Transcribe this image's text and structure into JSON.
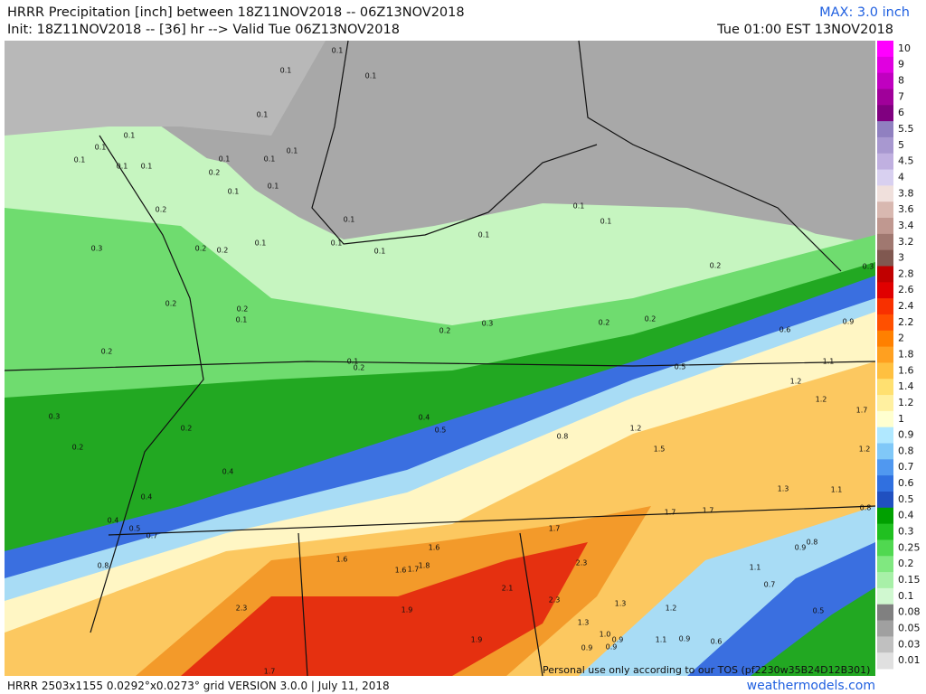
{
  "header": {
    "title": "HRRR Precipitation [inch] between 18Z11NOV2018 -- 06Z13NOV2018",
    "init": "Init: 18Z11NOV2018 -- [36] hr --> Valid Tue 06Z13NOV2018",
    "max": "MAX: 3.0 inch",
    "valid": "Tue 01:00 EST 13NOV2018"
  },
  "colorbar": {
    "labels": [
      10,
      9,
      8,
      7,
      6,
      5.5,
      5,
      4.5,
      4,
      3.8,
      3.6,
      3.4,
      3.2,
      3,
      2.8,
      2.6,
      2.4,
      2.2,
      2,
      1.8,
      1.6,
      1.4,
      1.2,
      1,
      0.9,
      0.8,
      0.7,
      0.6,
      0.5,
      0.4,
      0.3,
      0.25,
      0.2,
      0.15,
      0.1,
      0.08,
      0.05,
      0.03,
      0.01
    ],
    "colors": [
      "#ff00ff",
      "#e000e0",
      "#c000c0",
      "#a0009a",
      "#800080",
      "#9080c0",
      "#a898d0",
      "#c0b0e0",
      "#d8d0f0",
      "#f0e0dc",
      "#d8b8b0",
      "#c09890",
      "#a07870",
      "#805850",
      "#c00000",
      "#e00000",
      "#f83000",
      "#ff5000",
      "#ff8000",
      "#ffa020",
      "#ffc040",
      "#ffe070",
      "#fff0a0",
      "#ffffd0",
      "#b0e8ff",
      "#80c8f8",
      "#5098f0",
      "#3070e0",
      "#2050c0",
      "#00a000",
      "#20c020",
      "#50d850",
      "#80e880",
      "#a8f0a8",
      "#d0f8d0",
      "#808080",
      "#a0a0a0",
      "#c0c0c0",
      "#e0e0e0"
    ]
  },
  "map": {
    "labels": [
      "0.1",
      "0.1",
      "0.1",
      "0.1",
      "0.1",
      "0.1",
      "0.1",
      "0.1",
      "0.1",
      "0.2",
      "0.1",
      "0.1",
      "0.1",
      "0.1",
      "0.1",
      "0.2",
      "0.3",
      "0.2",
      "0.2",
      "0.1",
      "0.1",
      "0.1",
      "0.1",
      "0.1",
      "0.1",
      "0.1",
      "0.2",
      "0.3",
      "0.2",
      "0.2",
      "0.1",
      "0.2",
      "0.1",
      "0.2",
      "0.2",
      "0.3",
      "0.2",
      "0.2",
      "0.6",
      "0.9",
      "1.1",
      "0.5",
      "1.2",
      "0.3",
      "0.2",
      "0.4",
      "0.5",
      "0.8",
      "1.2",
      "1.5",
      "1.2",
      "1.7",
      "1.2",
      "0.2",
      "0.4",
      "0.4",
      "1.3",
      "1.1",
      "0.8",
      "1.7",
      "1.7",
      "0.4",
      "0.5",
      "0.7",
      "1.7",
      "0.8",
      "1.6",
      "1.6",
      "1.6",
      "1.7",
      "1.8",
      "2.3",
      "0.9",
      "0.8",
      "1.1",
      "0.7",
      "2.1",
      "2.3",
      "1.3",
      "1.2",
      "2.3",
      "1.9",
      "0.5",
      "1.3",
      "1.9",
      "1.0",
      "0.9",
      "1.1",
      "0.9",
      "0.6",
      "0.9",
      "0.9",
      "1.7"
    ]
  },
  "footer": {
    "info": "HRRR 2503x1155 0.0292°x0.0273° grid VERSION 3.0.0 | July 11, 2018",
    "site": "weathermodels.com",
    "notice": "Personal use only according to our TOS (pf2230w35B24D12B301)"
  }
}
